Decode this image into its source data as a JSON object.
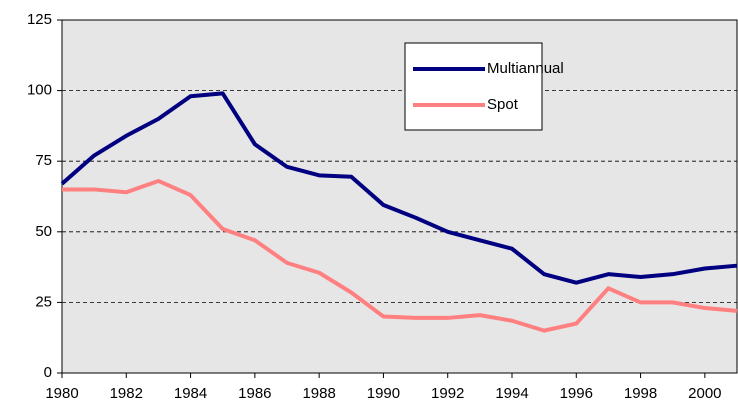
{
  "chart_data": {
    "type": "line",
    "x": [
      1980,
      1981,
      1982,
      1983,
      1984,
      1985,
      1986,
      1987,
      1988,
      1989,
      1990,
      1991,
      1992,
      1993,
      1994,
      1995,
      1996,
      1997,
      1998,
      1999,
      2000,
      2001
    ],
    "series": [
      {
        "name": "Multiannual",
        "color": "#000080",
        "values": [
          67,
          77,
          84,
          90,
          98,
          99,
          81,
          73,
          70,
          69.5,
          59.5,
          55,
          50,
          47,
          44,
          35,
          32,
          35,
          34,
          35,
          37,
          38
        ]
      },
      {
        "name": "Spot",
        "color": "#ff8080",
        "values": [
          65,
          65,
          64,
          68,
          63,
          51,
          47,
          39,
          35.5,
          28.5,
          20,
          19.5,
          19.5,
          20.5,
          18.5,
          15,
          17.5,
          30,
          25,
          25,
          23,
          22
        ]
      }
    ],
    "xlim": [
      1980,
      2001
    ],
    "xticks": [
      1980,
      1982,
      1984,
      1986,
      1988,
      1990,
      1992,
      1994,
      1996,
      1998,
      2000
    ],
    "ylim": [
      0,
      125
    ],
    "yticks": [
      0,
      25,
      50,
      75,
      100,
      125
    ],
    "grid": true,
    "legend": "top-right",
    "plot_background": "#e6e6e6"
  }
}
